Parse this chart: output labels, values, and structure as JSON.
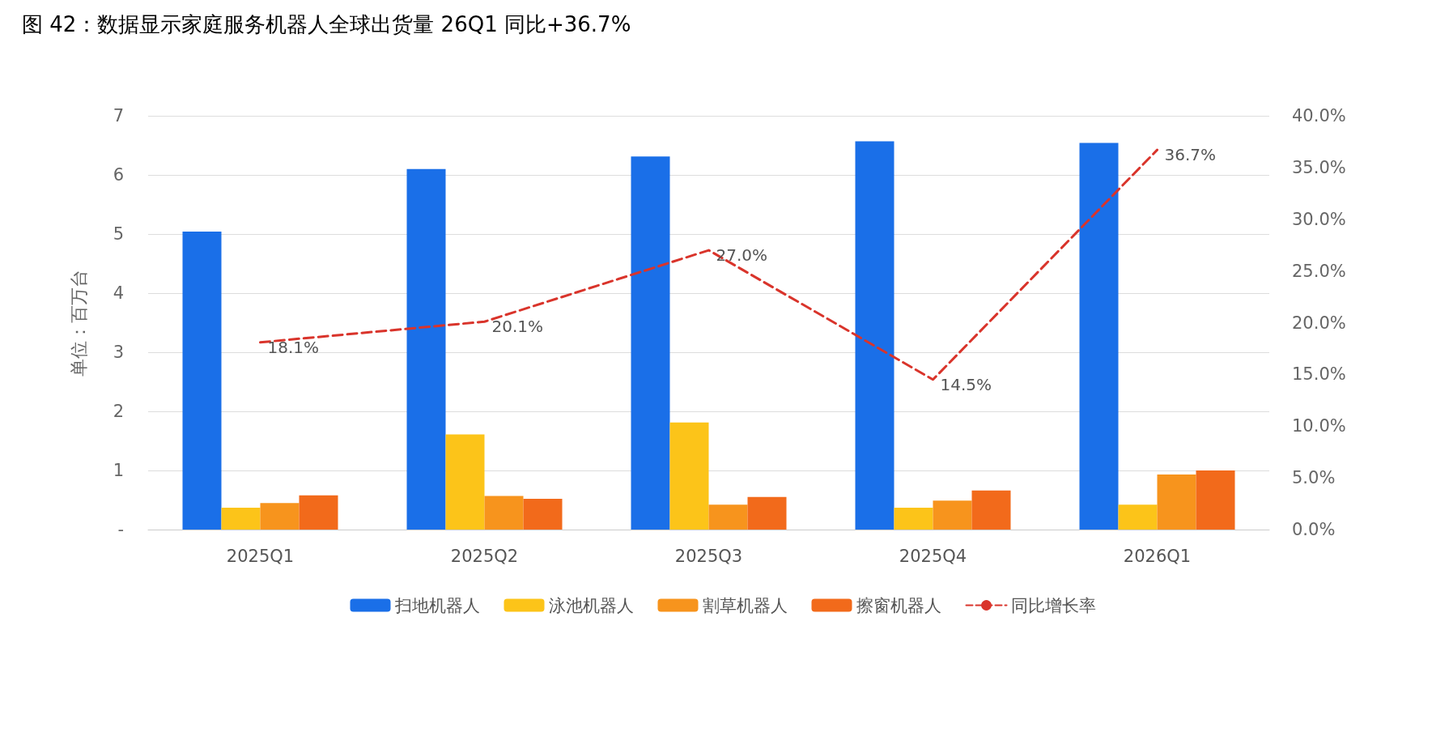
{
  "chart_data": {
    "type": "bar",
    "title": "图 42：数据显示家庭服务机器人全球出货量 26Q1 同比+36.7%",
    "ylabel": "单位：百万台",
    "categories": [
      "2025Q1",
      "2025Q2",
      "2025Q3",
      "2025Q4",
      "2026Q1"
    ],
    "series": [
      {
        "name": "扫地机器人",
        "color": "#1a6fe8",
        "values": [
          5.04,
          6.1,
          6.31,
          6.57,
          6.54
        ]
      },
      {
        "name": "泳池机器人",
        "color": "#fcc419",
        "values": [
          0.37,
          1.61,
          1.81,
          0.37,
          0.42
        ]
      },
      {
        "name": "割草机器人",
        "color": "#f7941d",
        "values": [
          0.45,
          0.57,
          0.42,
          0.49,
          0.93
        ]
      },
      {
        "name": "擦窗机器人",
        "color": "#f26a1b",
        "values": [
          0.58,
          0.52,
          0.55,
          0.66,
          1.0
        ]
      },
      {
        "name": "同比增长率",
        "type": "line",
        "axis": "y2",
        "color": "#d9342b",
        "line_style": "dashed",
        "marker": "none",
        "values": [
          18.1,
          20.1,
          27.0,
          14.5,
          36.7
        ],
        "value_labels": [
          "18.1%",
          "20.1%",
          "27.0%",
          "14.5%",
          "36.7%"
        ]
      }
    ],
    "ylim": [
      0,
      7
    ],
    "yticks": [
      {
        "value": 0,
        "label": "-"
      },
      1,
      2,
      3,
      4,
      5,
      6,
      7
    ],
    "y2lim": [
      0,
      40
    ],
    "y2ticks": [
      {
        "value": 0,
        "label": "0.0%"
      },
      {
        "value": 5,
        "label": "5.0%"
      },
      {
        "value": 10,
        "label": "10.0%"
      },
      {
        "value": 15,
        "label": "15.0%"
      },
      {
        "value": 20,
        "label": "20.0%"
      },
      {
        "value": 25,
        "label": "25.0%"
      },
      {
        "value": 30,
        "label": "30.0%"
      },
      {
        "value": 35,
        "label": "35.0%"
      },
      {
        "value": 40,
        "label": "40.0%"
      }
    ],
    "grid": "y",
    "legend": "bottom"
  }
}
